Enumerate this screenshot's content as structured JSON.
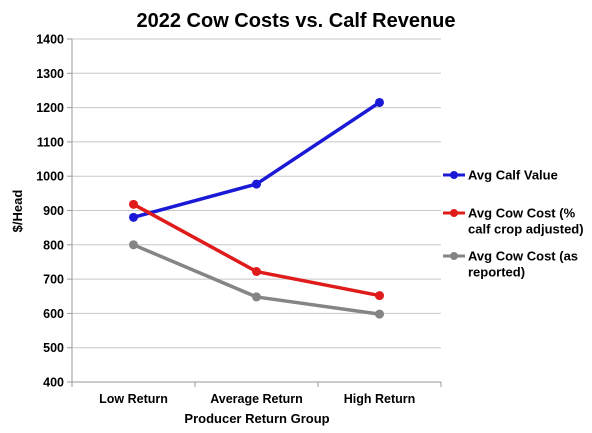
{
  "chart_data": {
    "type": "line",
    "title": "2022 Cow Costs vs. Calf Revenue",
    "xlabel": "Producer Return Group",
    "ylabel": "$/Head",
    "categories": [
      "Low Return",
      "Average Return",
      "High Return"
    ],
    "ylim": [
      400,
      1400
    ],
    "yticks": [
      "400",
      "500",
      "600",
      "700",
      "800",
      "900",
      "1000",
      "1100",
      "1200",
      "1300",
      "1400"
    ],
    "grid": true,
    "legend_position": "right",
    "series": [
      {
        "name": "Avg Calf Value",
        "name_lines": [
          "Avg Calf Value"
        ],
        "color": "#1a1ad6",
        "values": [
          880,
          977,
          1215
        ]
      },
      {
        "name": "Avg Cow Cost (% calf crop adjusted)",
        "name_lines": [
          "Avg Cow Cost (%",
          "calf crop adjusted)"
        ],
        "color": "#e01b1b",
        "values": [
          918,
          722,
          652
        ]
      },
      {
        "name": "Avg Cow Cost (as reported)",
        "name_lines": [
          "Avg Cow Cost (as",
          "reported)"
        ],
        "color": "#858585",
        "values": [
          800,
          648,
          598
        ]
      }
    ]
  }
}
